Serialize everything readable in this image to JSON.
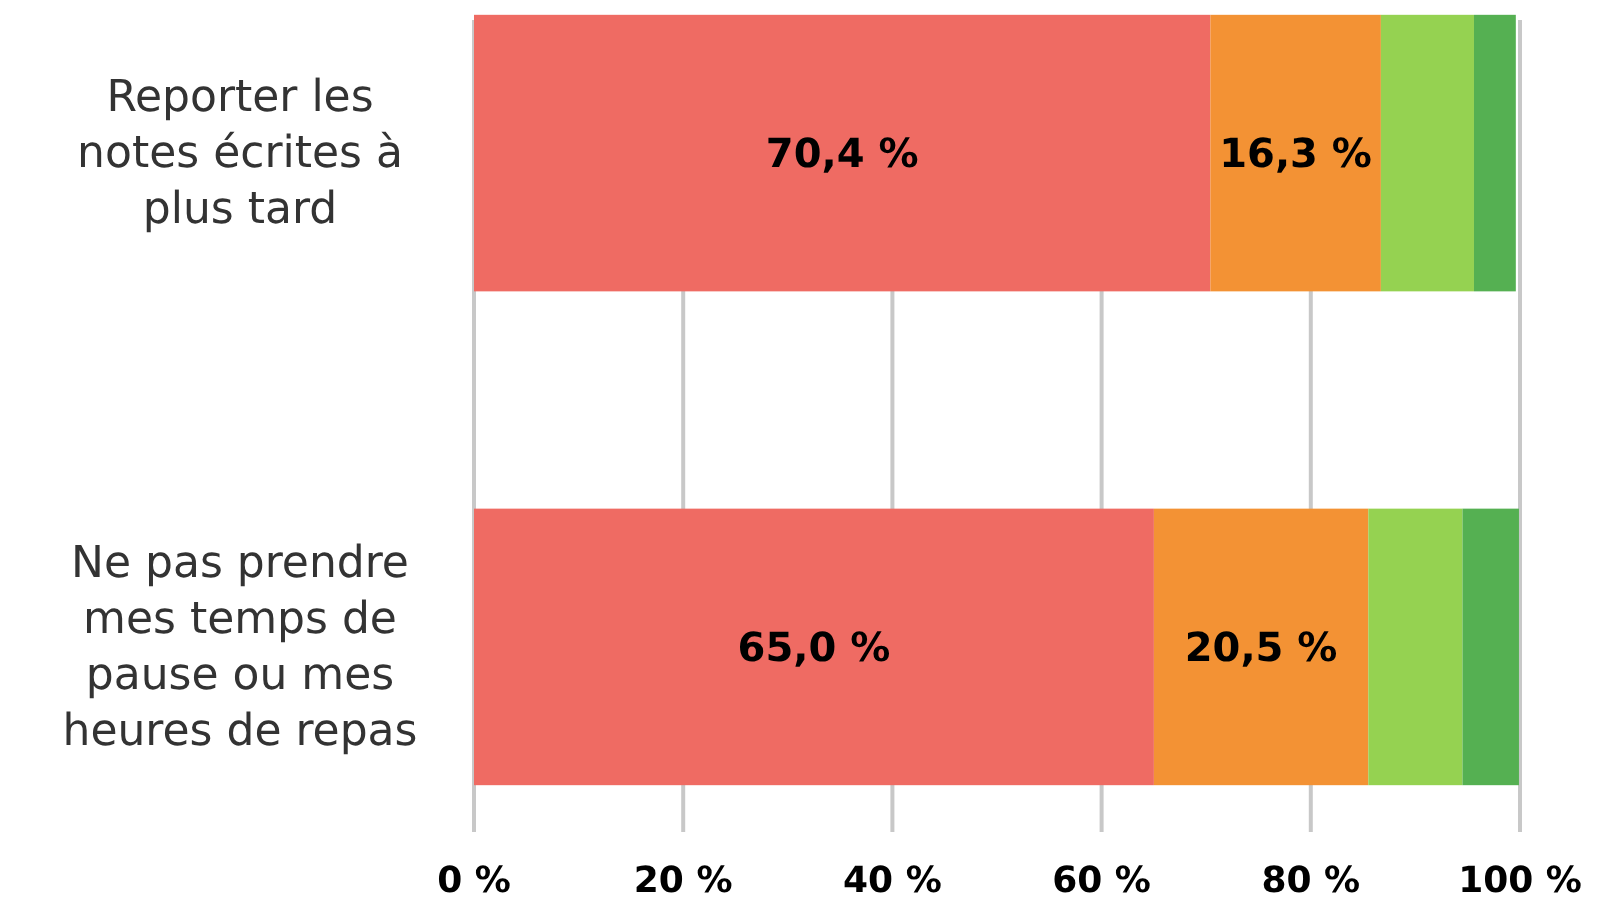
{
  "chart_data": {
    "type": "bar",
    "orientation": "horizontal",
    "stacked": true,
    "categories": [
      "Reporter les notes écrites à plus tard",
      "Ne pas prendre mes temps de pause ou mes heures de repas"
    ],
    "series": [
      {
        "color": "#ef6b63",
        "values": [
          70.4,
          65.0
        ],
        "value_labels": [
          "70,4 %",
          "65,0 %"
        ]
      },
      {
        "color": "#f39234",
        "values": [
          16.3,
          20.5
        ],
        "value_labels": [
          "16,3 %",
          "20,5 %"
        ]
      },
      {
        "color": "#95d251",
        "values": [
          8.9,
          9.0
        ]
      },
      {
        "color": "#55b052",
        "values": [
          4.0,
          5.4
        ]
      }
    ],
    "xlim": [
      0,
      100
    ],
    "xticks": [
      {
        "value": 0,
        "label": "0 %"
      },
      {
        "value": 20,
        "label": "20 %"
      },
      {
        "value": 40,
        "label": "40 %"
      },
      {
        "value": 60,
        "label": "60 %"
      },
      {
        "value": 80,
        "label": "80 %"
      },
      {
        "value": 100,
        "label": "100 %"
      }
    ],
    "grid": "x"
  }
}
